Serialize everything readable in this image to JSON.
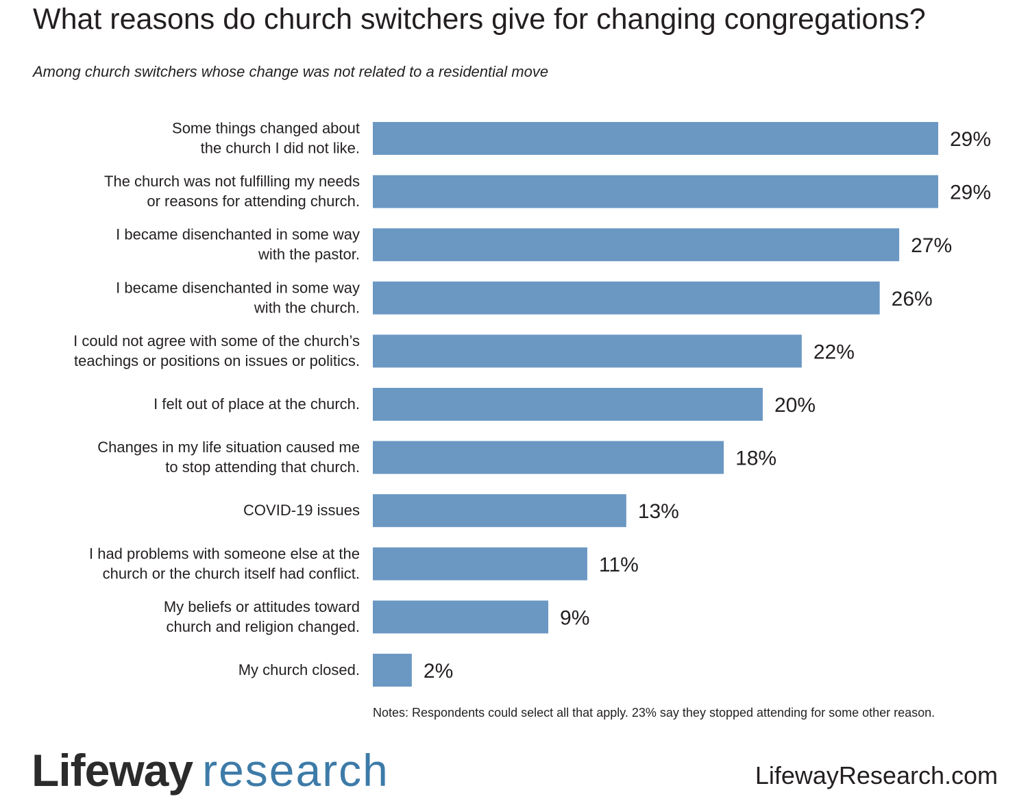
{
  "header": {
    "title": "What reasons do church switchers give for changing congregations?",
    "subtitle": "Among church switchers whose change was not related to a residential move"
  },
  "chart_data": {
    "type": "bar",
    "orientation": "horizontal",
    "title": "What reasons do church switchers give for changing congregations?",
    "subtitle": "Among church switchers whose change was not related to a residential move",
    "xlabel": "",
    "ylabel": "",
    "xlim": [
      0,
      29
    ],
    "grid": false,
    "bar_color": "#6b98c3",
    "categories": [
      [
        "Some things changed about",
        "the church I did not like."
      ],
      [
        "The church was not fulfilling my needs",
        "or reasons for attending church."
      ],
      [
        "I became disenchanted in some way",
        "with the pastor."
      ],
      [
        "I became disenchanted in some way",
        "with the church."
      ],
      [
        "I could not agree with some of the church’s",
        "teachings or positions on issues or politics."
      ],
      [
        "I felt out of place at the church."
      ],
      [
        "Changes in my life situation caused me",
        "to stop attending that church."
      ],
      [
        "COVID-19 issues"
      ],
      [
        "I had problems with someone else at the",
        "church or the church itself had conflict."
      ],
      [
        "My beliefs or attitudes toward",
        "church and religion changed."
      ],
      [
        "My church closed."
      ]
    ],
    "values": [
      29,
      29,
      27,
      26,
      22,
      20,
      18,
      13,
      11,
      9,
      2
    ],
    "value_labels": [
      "29%",
      "29%",
      "27%",
      "26%",
      "22%",
      "20%",
      "18%",
      "13%",
      "11%",
      "9%",
      "2%"
    ]
  },
  "footer": {
    "notes": "Notes: Respondents could select all that apply. 23% say they stopped attending for some other reason.",
    "logo_word1": "Lifeway",
    "logo_word2": "research",
    "website": "LifewayResearch.com"
  }
}
